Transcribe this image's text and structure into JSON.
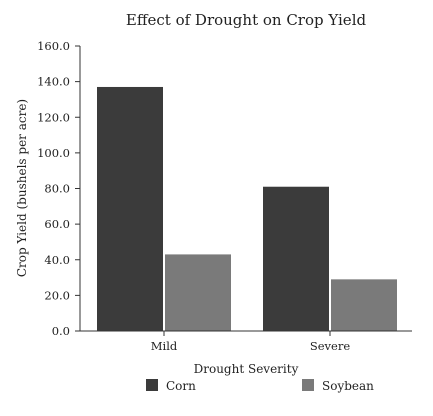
{
  "chart_data": {
    "type": "bar",
    "title": "Effect of Drought on Crop Yield",
    "xlabel": "Drought Severity",
    "ylabel": "Crop Yield (bushels per acre)",
    "categories": [
      "Mild",
      "Severe"
    ],
    "series": [
      {
        "name": "Corn",
        "values": [
          137,
          81
        ],
        "color": "#3b3b3b"
      },
      {
        "name": "Soybean",
        "values": [
          43,
          29
        ],
        "color": "#7a7a7a"
      }
    ],
    "ylim": [
      0,
      160
    ],
    "yticks": [
      "0.0",
      "20.0",
      "40.0",
      "60.0",
      "80.0",
      "100.0",
      "120.0",
      "140.0",
      "160.0"
    ],
    "grid": false,
    "legend_position": "bottom"
  }
}
